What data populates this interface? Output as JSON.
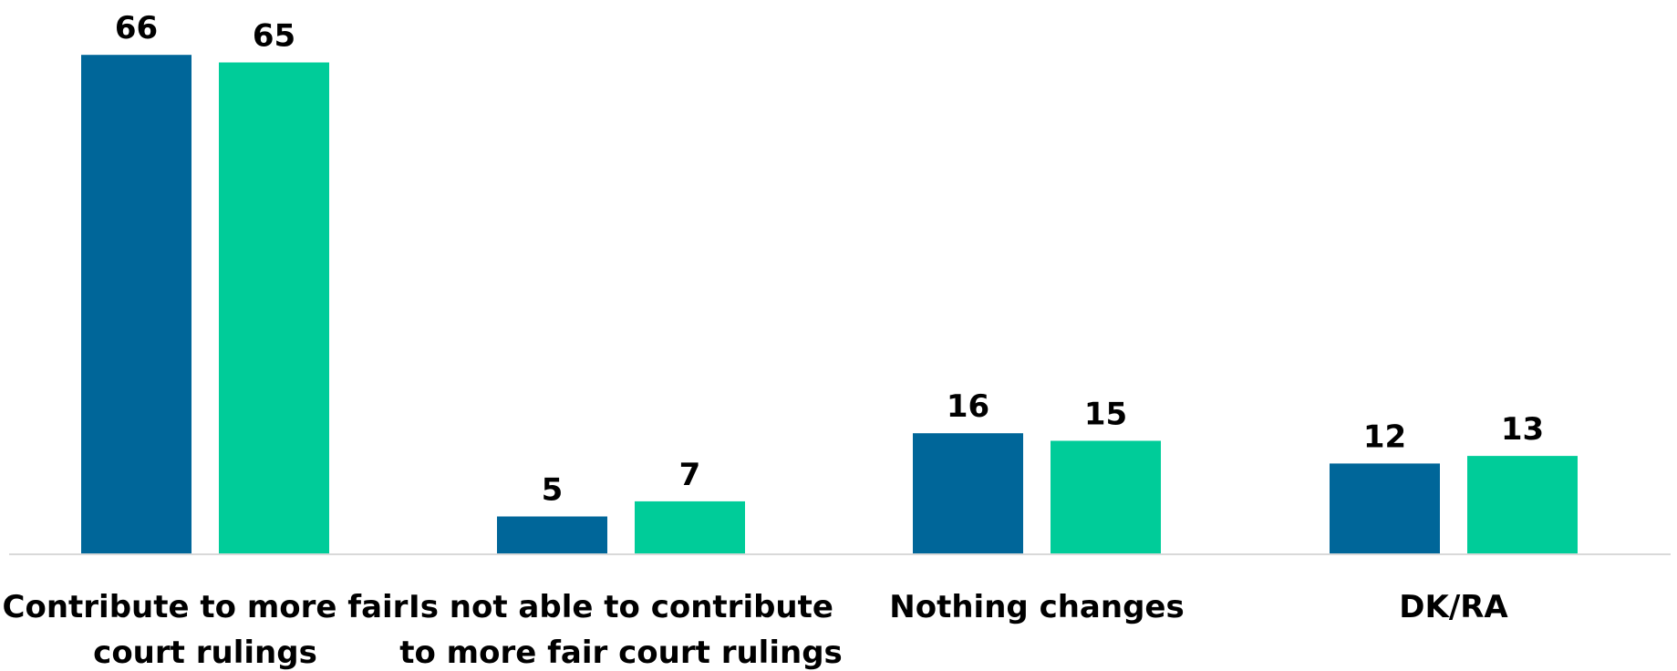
{
  "chart_data": {
    "type": "bar",
    "categories": [
      [
        "Contribute to more fair",
        "court rulings"
      ],
      [
        "Is not able to contribute",
        "to more fair court rulings"
      ],
      [
        "Nothing changes"
      ],
      [
        "DK/RA"
      ]
    ],
    "series": [
      {
        "values": [
          66,
          5,
          16,
          12
        ],
        "color": "#006699"
      },
      {
        "values": [
          65,
          7,
          15,
          13
        ],
        "color": "#00CC99"
      }
    ],
    "title": "",
    "xlabel": "",
    "ylabel": "",
    "ylim": [
      0,
      70
    ],
    "grid": false,
    "legend": "none"
  }
}
